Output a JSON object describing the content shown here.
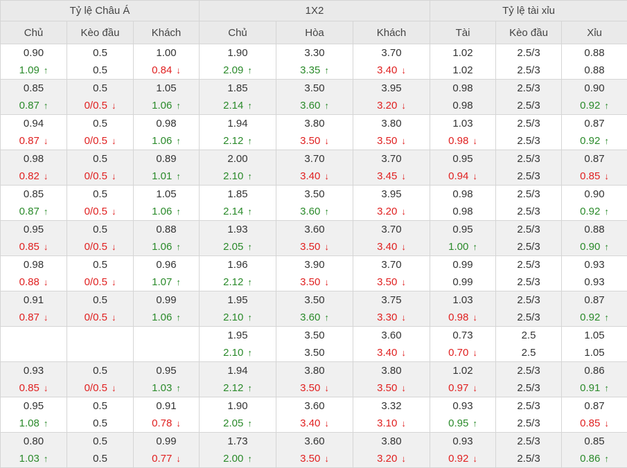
{
  "header": {
    "groups": [
      "Tỷ lệ Châu Á",
      "1X2",
      "Tỷ lệ tài xỉu"
    ],
    "columns": [
      "Chủ",
      "Kèo đầu",
      "Khách",
      "Chủ",
      "Hòa",
      "Khách",
      "Tài",
      "Kèo đầu",
      "Xỉu"
    ]
  },
  "arrows": {
    "up": "↑",
    "down": "↓"
  },
  "rows": [
    {
      "top": [
        "0.90",
        "0.5",
        "1.00",
        "1.90",
        "3.30",
        "3.70",
        "1.02",
        "2.5/3",
        "0.88"
      ],
      "bottom": [
        [
          "1.09",
          "up"
        ],
        [
          "0.5",
          ""
        ],
        [
          "0.84",
          "down"
        ],
        [
          "2.09",
          "up"
        ],
        [
          "3.35",
          "up"
        ],
        [
          "3.40",
          "down"
        ],
        [
          "1.02",
          ""
        ],
        [
          "2.5/3",
          ""
        ],
        [
          "0.88",
          ""
        ]
      ]
    },
    {
      "top": [
        "0.85",
        "0.5",
        "1.05",
        "1.85",
        "3.50",
        "3.95",
        "0.98",
        "2.5/3",
        "0.90"
      ],
      "bottom": [
        [
          "0.87",
          "up"
        ],
        [
          "0/0.5",
          "down"
        ],
        [
          "1.06",
          "up"
        ],
        [
          "2.14",
          "up"
        ],
        [
          "3.60",
          "up"
        ],
        [
          "3.20",
          "down"
        ],
        [
          "0.98",
          ""
        ],
        [
          "2.5/3",
          ""
        ],
        [
          "0.92",
          "up"
        ]
      ]
    },
    {
      "top": [
        "0.94",
        "0.5",
        "0.98",
        "1.94",
        "3.80",
        "3.80",
        "1.03",
        "2.5/3",
        "0.87"
      ],
      "bottom": [
        [
          "0.87",
          "down"
        ],
        [
          "0/0.5",
          "down"
        ],
        [
          "1.06",
          "up"
        ],
        [
          "2.12",
          "up"
        ],
        [
          "3.50",
          "down"
        ],
        [
          "3.50",
          "down"
        ],
        [
          "0.98",
          "down"
        ],
        [
          "2.5/3",
          ""
        ],
        [
          "0.92",
          "up"
        ]
      ]
    },
    {
      "top": [
        "0.98",
        "0.5",
        "0.89",
        "2.00",
        "3.70",
        "3.70",
        "0.95",
        "2.5/3",
        "0.87"
      ],
      "bottom": [
        [
          "0.82",
          "down"
        ],
        [
          "0/0.5",
          "down"
        ],
        [
          "1.01",
          "up"
        ],
        [
          "2.10",
          "up"
        ],
        [
          "3.40",
          "down"
        ],
        [
          "3.45",
          "down"
        ],
        [
          "0.94",
          "down"
        ],
        [
          "2.5/3",
          ""
        ],
        [
          "0.85",
          "down"
        ]
      ]
    },
    {
      "top": [
        "0.85",
        "0.5",
        "1.05",
        "1.85",
        "3.50",
        "3.95",
        "0.98",
        "2.5/3",
        "0.90"
      ],
      "bottom": [
        [
          "0.87",
          "up"
        ],
        [
          "0/0.5",
          "down"
        ],
        [
          "1.06",
          "up"
        ],
        [
          "2.14",
          "up"
        ],
        [
          "3.60",
          "up"
        ],
        [
          "3.20",
          "down"
        ],
        [
          "0.98",
          ""
        ],
        [
          "2.5/3",
          ""
        ],
        [
          "0.92",
          "up"
        ]
      ]
    },
    {
      "top": [
        "0.95",
        "0.5",
        "0.88",
        "1.93",
        "3.60",
        "3.70",
        "0.95",
        "2.5/3",
        "0.88"
      ],
      "bottom": [
        [
          "0.85",
          "down"
        ],
        [
          "0/0.5",
          "down"
        ],
        [
          "1.06",
          "up"
        ],
        [
          "2.05",
          "up"
        ],
        [
          "3.50",
          "down"
        ],
        [
          "3.40",
          "down"
        ],
        [
          "1.00",
          "up"
        ],
        [
          "2.5/3",
          ""
        ],
        [
          "0.90",
          "up"
        ]
      ]
    },
    {
      "top": [
        "0.98",
        "0.5",
        "0.96",
        "1.96",
        "3.90",
        "3.70",
        "0.99",
        "2.5/3",
        "0.93"
      ],
      "bottom": [
        [
          "0.88",
          "down"
        ],
        [
          "0/0.5",
          "down"
        ],
        [
          "1.07",
          "up"
        ],
        [
          "2.12",
          "up"
        ],
        [
          "3.50",
          "down"
        ],
        [
          "3.50",
          "down"
        ],
        [
          "0.99",
          ""
        ],
        [
          "2.5/3",
          ""
        ],
        [
          "0.93",
          ""
        ]
      ]
    },
    {
      "top": [
        "0.91",
        "0.5",
        "0.99",
        "1.95",
        "3.50",
        "3.75",
        "1.03",
        "2.5/3",
        "0.87"
      ],
      "bottom": [
        [
          "0.87",
          "down"
        ],
        [
          "0/0.5",
          "down"
        ],
        [
          "1.06",
          "up"
        ],
        [
          "2.10",
          "up"
        ],
        [
          "3.60",
          "up"
        ],
        [
          "3.30",
          "down"
        ],
        [
          "0.98",
          "down"
        ],
        [
          "2.5/3",
          ""
        ],
        [
          "0.92",
          "up"
        ]
      ]
    },
    {
      "top": [
        "",
        "",
        "",
        "1.95",
        "3.50",
        "3.60",
        "0.73",
        "2.5",
        "1.05"
      ],
      "bottom": [
        [
          "",
          ""
        ],
        [
          "",
          ""
        ],
        [
          "",
          ""
        ],
        [
          "2.10",
          "up"
        ],
        [
          "3.50",
          ""
        ],
        [
          "3.40",
          "down"
        ],
        [
          "0.70",
          "down"
        ],
        [
          "2.5",
          ""
        ],
        [
          "1.05",
          ""
        ]
      ]
    },
    {
      "top": [
        "0.93",
        "0.5",
        "0.95",
        "1.94",
        "3.80",
        "3.80",
        "1.02",
        "2.5/3",
        "0.86"
      ],
      "bottom": [
        [
          "0.85",
          "down"
        ],
        [
          "0/0.5",
          "down"
        ],
        [
          "1.03",
          "up"
        ],
        [
          "2.12",
          "up"
        ],
        [
          "3.50",
          "down"
        ],
        [
          "3.50",
          "down"
        ],
        [
          "0.97",
          "down"
        ],
        [
          "2.5/3",
          ""
        ],
        [
          "0.91",
          "up"
        ]
      ]
    },
    {
      "top": [
        "0.95",
        "0.5",
        "0.91",
        "1.90",
        "3.60",
        "3.32",
        "0.93",
        "2.5/3",
        "0.87"
      ],
      "bottom": [
        [
          "1.08",
          "up"
        ],
        [
          "0.5",
          ""
        ],
        [
          "0.78",
          "down"
        ],
        [
          "2.05",
          "up"
        ],
        [
          "3.40",
          "down"
        ],
        [
          "3.10",
          "down"
        ],
        [
          "0.95",
          "up"
        ],
        [
          "2.5/3",
          ""
        ],
        [
          "0.85",
          "down"
        ]
      ]
    },
    {
      "top": [
        "0.80",
        "0.5",
        "0.99",
        "1.73",
        "3.60",
        "3.80",
        "0.93",
        "2.5/3",
        "0.85"
      ],
      "bottom": [
        [
          "1.03",
          "up"
        ],
        [
          "0.5",
          ""
        ],
        [
          "0.77",
          "down"
        ],
        [
          "2.00",
          "up"
        ],
        [
          "3.50",
          "down"
        ],
        [
          "3.20",
          "down"
        ],
        [
          "0.92",
          "down"
        ],
        [
          "2.5/3",
          ""
        ],
        [
          "0.86",
          "up"
        ]
      ]
    }
  ]
}
